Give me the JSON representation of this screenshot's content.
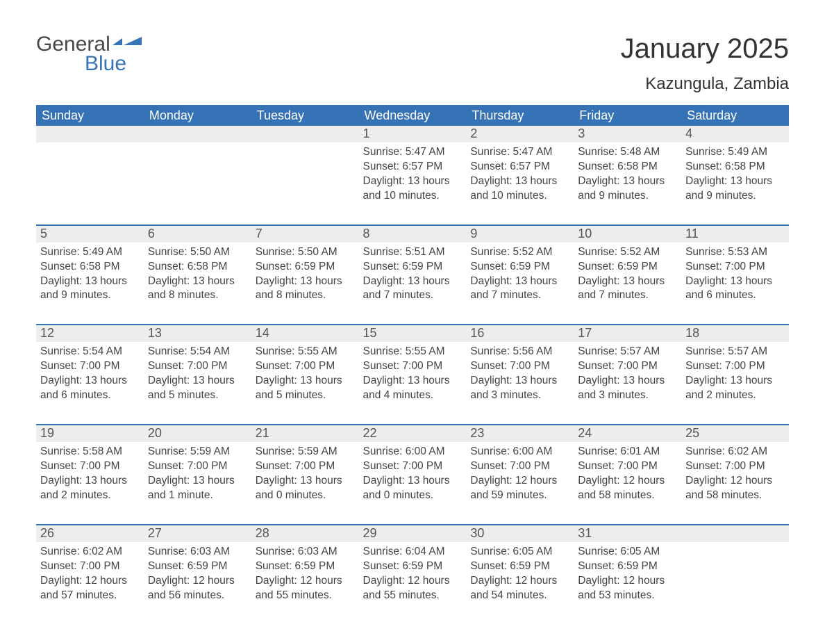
{
  "brand": {
    "part1": "General",
    "part2": "Blue",
    "text_color": "#474747",
    "accent_color": "#3573b6"
  },
  "header": {
    "month_title": "January 2025",
    "location": "Kazungula, Zambia"
  },
  "calendar": {
    "type": "table",
    "header_bg": "#3573b6",
    "header_text_color": "#ffffff",
    "daynum_bg": "#ededed",
    "row_border_color": "#3573b6",
    "background_color": "#ffffff",
    "text_color": "#444444",
    "font_family": "Arial",
    "columns": [
      "Sunday",
      "Monday",
      "Tuesday",
      "Wednesday",
      "Thursday",
      "Friday",
      "Saturday"
    ],
    "weeks": [
      [
        null,
        null,
        null,
        {
          "n": "1",
          "sr": "Sunrise: 5:47 AM",
          "ss": "Sunset: 6:57 PM",
          "dl": "Daylight: 13 hours and 10 minutes."
        },
        {
          "n": "2",
          "sr": "Sunrise: 5:47 AM",
          "ss": "Sunset: 6:57 PM",
          "dl": "Daylight: 13 hours and 10 minutes."
        },
        {
          "n": "3",
          "sr": "Sunrise: 5:48 AM",
          "ss": "Sunset: 6:58 PM",
          "dl": "Daylight: 13 hours and 9 minutes."
        },
        {
          "n": "4",
          "sr": "Sunrise: 5:49 AM",
          "ss": "Sunset: 6:58 PM",
          "dl": "Daylight: 13 hours and 9 minutes."
        }
      ],
      [
        {
          "n": "5",
          "sr": "Sunrise: 5:49 AM",
          "ss": "Sunset: 6:58 PM",
          "dl": "Daylight: 13 hours and 9 minutes."
        },
        {
          "n": "6",
          "sr": "Sunrise: 5:50 AM",
          "ss": "Sunset: 6:58 PM",
          "dl": "Daylight: 13 hours and 8 minutes."
        },
        {
          "n": "7",
          "sr": "Sunrise: 5:50 AM",
          "ss": "Sunset: 6:59 PM",
          "dl": "Daylight: 13 hours and 8 minutes."
        },
        {
          "n": "8",
          "sr": "Sunrise: 5:51 AM",
          "ss": "Sunset: 6:59 PM",
          "dl": "Daylight: 13 hours and 7 minutes."
        },
        {
          "n": "9",
          "sr": "Sunrise: 5:52 AM",
          "ss": "Sunset: 6:59 PM",
          "dl": "Daylight: 13 hours and 7 minutes."
        },
        {
          "n": "10",
          "sr": "Sunrise: 5:52 AM",
          "ss": "Sunset: 6:59 PM",
          "dl": "Daylight: 13 hours and 7 minutes."
        },
        {
          "n": "11",
          "sr": "Sunrise: 5:53 AM",
          "ss": "Sunset: 7:00 PM",
          "dl": "Daylight: 13 hours and 6 minutes."
        }
      ],
      [
        {
          "n": "12",
          "sr": "Sunrise: 5:54 AM",
          "ss": "Sunset: 7:00 PM",
          "dl": "Daylight: 13 hours and 6 minutes."
        },
        {
          "n": "13",
          "sr": "Sunrise: 5:54 AM",
          "ss": "Sunset: 7:00 PM",
          "dl": "Daylight: 13 hours and 5 minutes."
        },
        {
          "n": "14",
          "sr": "Sunrise: 5:55 AM",
          "ss": "Sunset: 7:00 PM",
          "dl": "Daylight: 13 hours and 5 minutes."
        },
        {
          "n": "15",
          "sr": "Sunrise: 5:55 AM",
          "ss": "Sunset: 7:00 PM",
          "dl": "Daylight: 13 hours and 4 minutes."
        },
        {
          "n": "16",
          "sr": "Sunrise: 5:56 AM",
          "ss": "Sunset: 7:00 PM",
          "dl": "Daylight: 13 hours and 3 minutes."
        },
        {
          "n": "17",
          "sr": "Sunrise: 5:57 AM",
          "ss": "Sunset: 7:00 PM",
          "dl": "Daylight: 13 hours and 3 minutes."
        },
        {
          "n": "18",
          "sr": "Sunrise: 5:57 AM",
          "ss": "Sunset: 7:00 PM",
          "dl": "Daylight: 13 hours and 2 minutes."
        }
      ],
      [
        {
          "n": "19",
          "sr": "Sunrise: 5:58 AM",
          "ss": "Sunset: 7:00 PM",
          "dl": "Daylight: 13 hours and 2 minutes."
        },
        {
          "n": "20",
          "sr": "Sunrise: 5:59 AM",
          "ss": "Sunset: 7:00 PM",
          "dl": "Daylight: 13 hours and 1 minute."
        },
        {
          "n": "21",
          "sr": "Sunrise: 5:59 AM",
          "ss": "Sunset: 7:00 PM",
          "dl": "Daylight: 13 hours and 0 minutes."
        },
        {
          "n": "22",
          "sr": "Sunrise: 6:00 AM",
          "ss": "Sunset: 7:00 PM",
          "dl": "Daylight: 13 hours and 0 minutes."
        },
        {
          "n": "23",
          "sr": "Sunrise: 6:00 AM",
          "ss": "Sunset: 7:00 PM",
          "dl": "Daylight: 12 hours and 59 minutes."
        },
        {
          "n": "24",
          "sr": "Sunrise: 6:01 AM",
          "ss": "Sunset: 7:00 PM",
          "dl": "Daylight: 12 hours and 58 minutes."
        },
        {
          "n": "25",
          "sr": "Sunrise: 6:02 AM",
          "ss": "Sunset: 7:00 PM",
          "dl": "Daylight: 12 hours and 58 minutes."
        }
      ],
      [
        {
          "n": "26",
          "sr": "Sunrise: 6:02 AM",
          "ss": "Sunset: 7:00 PM",
          "dl": "Daylight: 12 hours and 57 minutes."
        },
        {
          "n": "27",
          "sr": "Sunrise: 6:03 AM",
          "ss": "Sunset: 6:59 PM",
          "dl": "Daylight: 12 hours and 56 minutes."
        },
        {
          "n": "28",
          "sr": "Sunrise: 6:03 AM",
          "ss": "Sunset: 6:59 PM",
          "dl": "Daylight: 12 hours and 55 minutes."
        },
        {
          "n": "29",
          "sr": "Sunrise: 6:04 AM",
          "ss": "Sunset: 6:59 PM",
          "dl": "Daylight: 12 hours and 55 minutes."
        },
        {
          "n": "30",
          "sr": "Sunrise: 6:05 AM",
          "ss": "Sunset: 6:59 PM",
          "dl": "Daylight: 12 hours and 54 minutes."
        },
        {
          "n": "31",
          "sr": "Sunrise: 6:05 AM",
          "ss": "Sunset: 6:59 PM",
          "dl": "Daylight: 12 hours and 53 minutes."
        },
        null
      ]
    ]
  }
}
